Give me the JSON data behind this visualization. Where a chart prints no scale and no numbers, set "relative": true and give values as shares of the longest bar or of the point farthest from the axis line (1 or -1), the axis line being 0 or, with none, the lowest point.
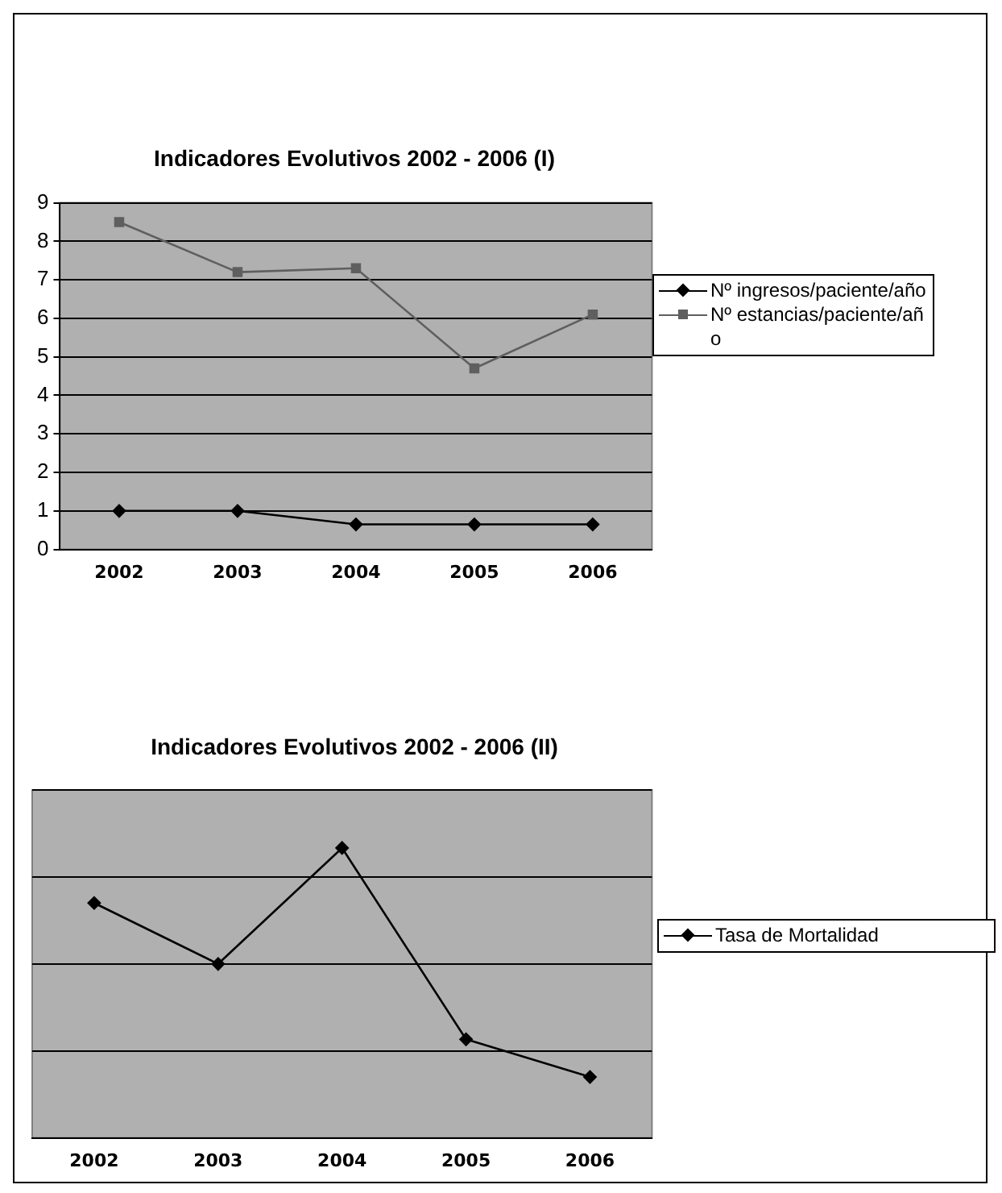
{
  "chart_data": [
    {
      "type": "line",
      "title": "Indicadores Evolutivos 2002 - 2006 (I)",
      "categories": [
        "2002",
        "2003",
        "2004",
        "2005",
        "2006"
      ],
      "series": [
        {
          "name": "Nº ingresos/paciente/año",
          "color": "#000000",
          "marker": "diamond",
          "values": [
            1,
            1,
            0.65,
            0.65,
            0.65
          ]
        },
        {
          "name": "Nº estancias/paciente/año",
          "color": "#5f5f5f",
          "marker": "square",
          "values": [
            8.5,
            7.2,
            7.3,
            4.7,
            6.1
          ]
        }
      ],
      "ylim": [
        0,
        9
      ],
      "yticks": [
        0,
        1,
        2,
        3,
        4,
        5,
        6,
        7,
        8,
        9
      ],
      "grid": "y",
      "legend": "right"
    },
    {
      "type": "line",
      "title": "Indicadores Evolutivos 2002 - 2006 (II)",
      "categories": [
        "2002",
        "2003",
        "2004",
        "2005",
        "2006"
      ],
      "relative": true,
      "series": [
        {
          "name": "Tasa de Mortalidad",
          "color": "#000000",
          "marker": "diamond",
          "values": [
            0.81,
            0.6,
            1,
            0.34,
            0.21
          ]
        }
      ],
      "grid": "y",
      "legend": "right"
    }
  ]
}
